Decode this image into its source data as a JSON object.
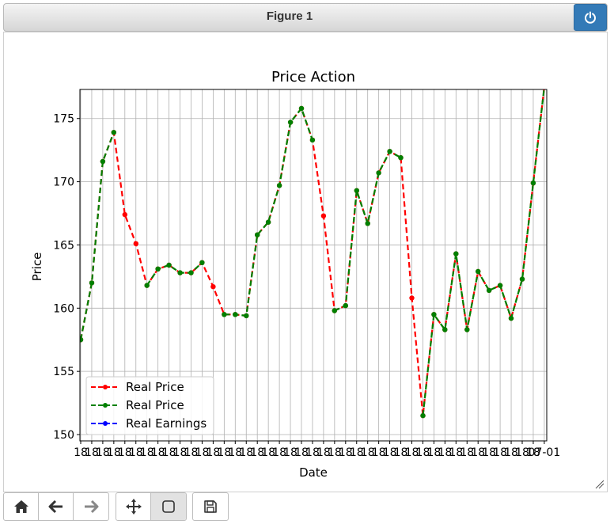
{
  "window": {
    "title": "Figure 1"
  },
  "toolbar": {
    "buttons": [
      {
        "icon": "home-icon"
      },
      {
        "icon": "back-arrow-icon"
      },
      {
        "icon": "forward-arrow-icon"
      },
      {
        "icon": "move-icon"
      },
      {
        "icon": "zoom-rect-icon"
      },
      {
        "icon": "save-icon"
      }
    ]
  },
  "chart_data": {
    "type": "line",
    "title": "Price Action",
    "xlabel": "Date",
    "ylabel": "Price",
    "ylim": [
      149.5,
      177.3
    ],
    "yticks": [
      150,
      155,
      160,
      165,
      170,
      175
    ],
    "grid": true,
    "legend_position": "lower-left",
    "x_tick_text": "18",
    "x_tick_text_end": "07-01",
    "x_count": 43,
    "series": [
      {
        "name": "Real Price",
        "color": "#ff0000",
        "style": "dashed",
        "values": [
          157.5,
          162.0,
          171.6,
          173.9,
          167.4,
          165.1,
          161.8,
          163.1,
          163.4,
          162.8,
          162.8,
          163.6,
          161.7,
          159.5,
          159.5,
          159.4,
          165.8,
          166.8,
          169.7,
          174.7,
          175.8,
          173.3,
          167.3,
          159.8,
          160.2,
          169.3,
          166.7,
          170.7,
          172.4,
          171.9,
          160.8,
          151.5,
          159.5,
          158.3,
          164.3,
          158.3,
          162.9,
          161.4,
          161.8,
          159.2,
          162.3,
          169.9,
          177.5
        ]
      },
      {
        "name": "Real Price",
        "color": "#008000",
        "style": "dashed",
        "values": [
          157.5,
          162.0,
          171.6,
          173.9,
          null,
          null,
          161.8,
          163.1,
          163.4,
          162.8,
          162.8,
          163.6,
          null,
          159.5,
          159.5,
          159.4,
          165.8,
          166.8,
          169.7,
          174.7,
          175.8,
          173.3,
          null,
          159.8,
          160.2,
          169.3,
          166.7,
          170.7,
          172.4,
          171.9,
          null,
          151.5,
          159.5,
          158.3,
          164.3,
          158.3,
          162.9,
          161.4,
          161.8,
          159.2,
          162.3,
          169.9,
          177.5
        ]
      },
      {
        "name": "Real Earnings",
        "color": "#0000ff",
        "style": "dashed",
        "values": []
      }
    ]
  }
}
